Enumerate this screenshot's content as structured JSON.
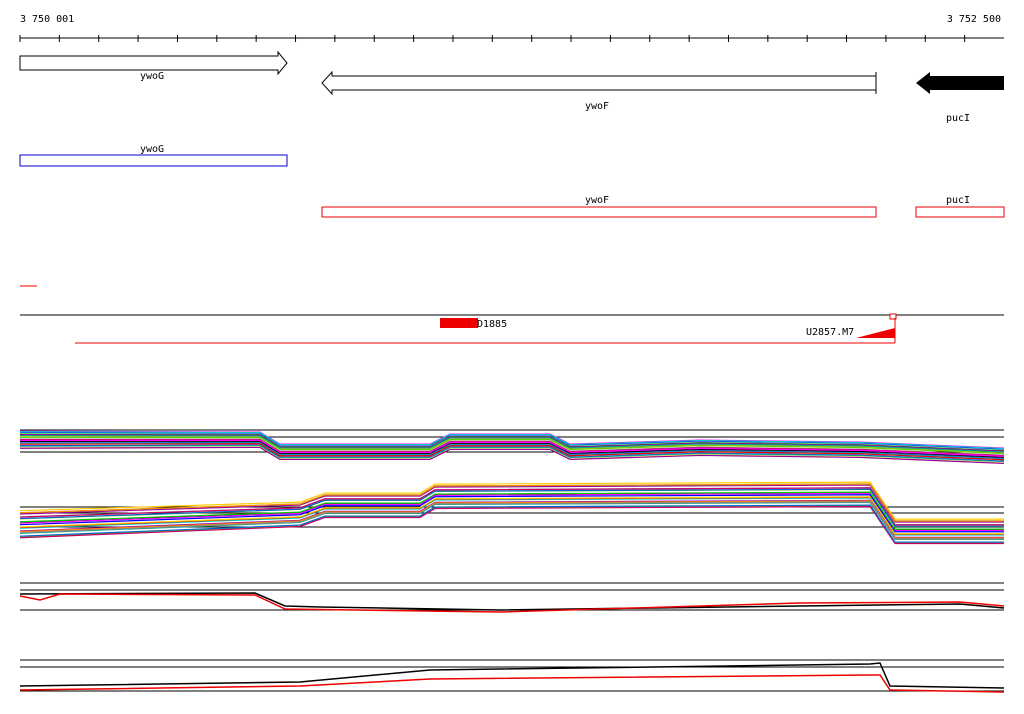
{
  "ruler": {
    "start": "3 750 001",
    "end": "3 752 500"
  },
  "genes": [
    {
      "label": "ywoG"
    },
    {
      "label": "ywoF"
    },
    {
      "label": "pucI"
    }
  ],
  "annotations": [
    {
      "label": "ywoG"
    },
    {
      "label": "ywoF"
    },
    {
      "label": "pucI"
    }
  ],
  "features": [
    {
      "label": "D1885"
    },
    {
      "label": "U2857.M7"
    }
  ]
}
